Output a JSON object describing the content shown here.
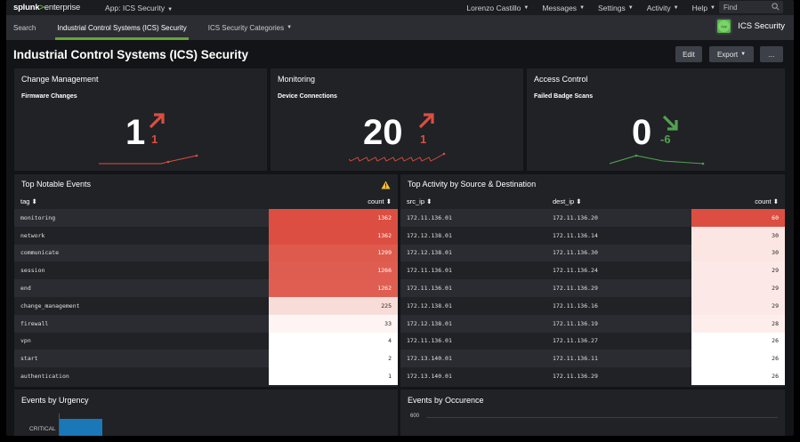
{
  "topbar": {
    "logo_main": "splunk",
    "logo_gt": ">",
    "logo_edition": "enterprise",
    "app_menu": "App: ICS Security",
    "user": "Lorenzo Castillo",
    "messages": "Messages",
    "settings": "Settings",
    "activity": "Activity",
    "help": "Help",
    "find_placeholder": "Find"
  },
  "nav": {
    "search": "Search",
    "ics_security": "Industrial Control Systems (ICS) Security",
    "categories": "ICS Security Categories",
    "app_title": "ICS Security"
  },
  "page": {
    "title": "Industrial Control Systems (ICS) Security",
    "edit_label": "Edit",
    "export_label": "Export",
    "more_label": "..."
  },
  "single_values": [
    {
      "panel_title": "Change Management",
      "subtitle": "Firmware Changes",
      "value": "1",
      "delta": "1",
      "trend": "up",
      "trend_color": "#dc4e41"
    },
    {
      "panel_title": "Monitoring",
      "subtitle": "Device Connections",
      "value": "20",
      "delta": "1",
      "trend": "up",
      "trend_color": "#dc4e41"
    },
    {
      "panel_title": "Access Control",
      "subtitle": "Failed Badge Scans",
      "value": "0",
      "delta": "-6",
      "trend": "down",
      "trend_color": "#53a051"
    }
  ],
  "notable": {
    "title": "Top Notable Events",
    "col_tag": "tag ⬍",
    "col_count": "count ⬍",
    "rows": [
      {
        "tag": "monitoring",
        "count": "1362"
      },
      {
        "tag": "network",
        "count": "1362"
      },
      {
        "tag": "communicate",
        "count": "1299"
      },
      {
        "tag": "session",
        "count": "1266"
      },
      {
        "tag": "end",
        "count": "1262"
      },
      {
        "tag": "change_management",
        "count": "225"
      },
      {
        "tag": "firewall",
        "count": "33"
      },
      {
        "tag": "vpn",
        "count": "4"
      },
      {
        "tag": "start",
        "count": "2"
      },
      {
        "tag": "authentication",
        "count": "1"
      }
    ]
  },
  "activity": {
    "title": "Top Activity by Source & Destination",
    "col_src": "src_ip ⬍",
    "col_dest": "dest_ip ⬍",
    "col_count": "count ⬍",
    "rows": [
      {
        "src": "172.11.136.01",
        "dest": "172.11.136.20",
        "count": "60"
      },
      {
        "src": "172.12.138.01",
        "dest": "172.11.136.14",
        "count": "30"
      },
      {
        "src": "172.12.138.01",
        "dest": "172.11.136.30",
        "count": "30"
      },
      {
        "src": "172.11.136.01",
        "dest": "172.11.136.24",
        "count": "29"
      },
      {
        "src": "172.11.136.01",
        "dest": "172.11.136.29",
        "count": "29"
      },
      {
        "src": "172.12.138.01",
        "dest": "172.11.136.16",
        "count": "29"
      },
      {
        "src": "172.12.138.01",
        "dest": "172.11.136.19",
        "count": "28"
      },
      {
        "src": "172.11.136.01",
        "dest": "172.11.136.27",
        "count": "26"
      },
      {
        "src": "172.13.140.01",
        "dest": "172.11.136.11",
        "count": "26"
      },
      {
        "src": "172.13.140.01",
        "dest": "172.11.136.29",
        "count": "26"
      }
    ]
  },
  "urgency": {
    "title": "Events by Urgency",
    "first_label": "CRITICAL"
  },
  "occurrence": {
    "title": "Events by Occurence",
    "y_top": "600"
  },
  "colors": {
    "accent_green": "#65a637",
    "heat_red": "#dc4e41",
    "up_red": "#dc4e41",
    "down_green": "#53a051",
    "bar_blue": "#1a77b8"
  }
}
